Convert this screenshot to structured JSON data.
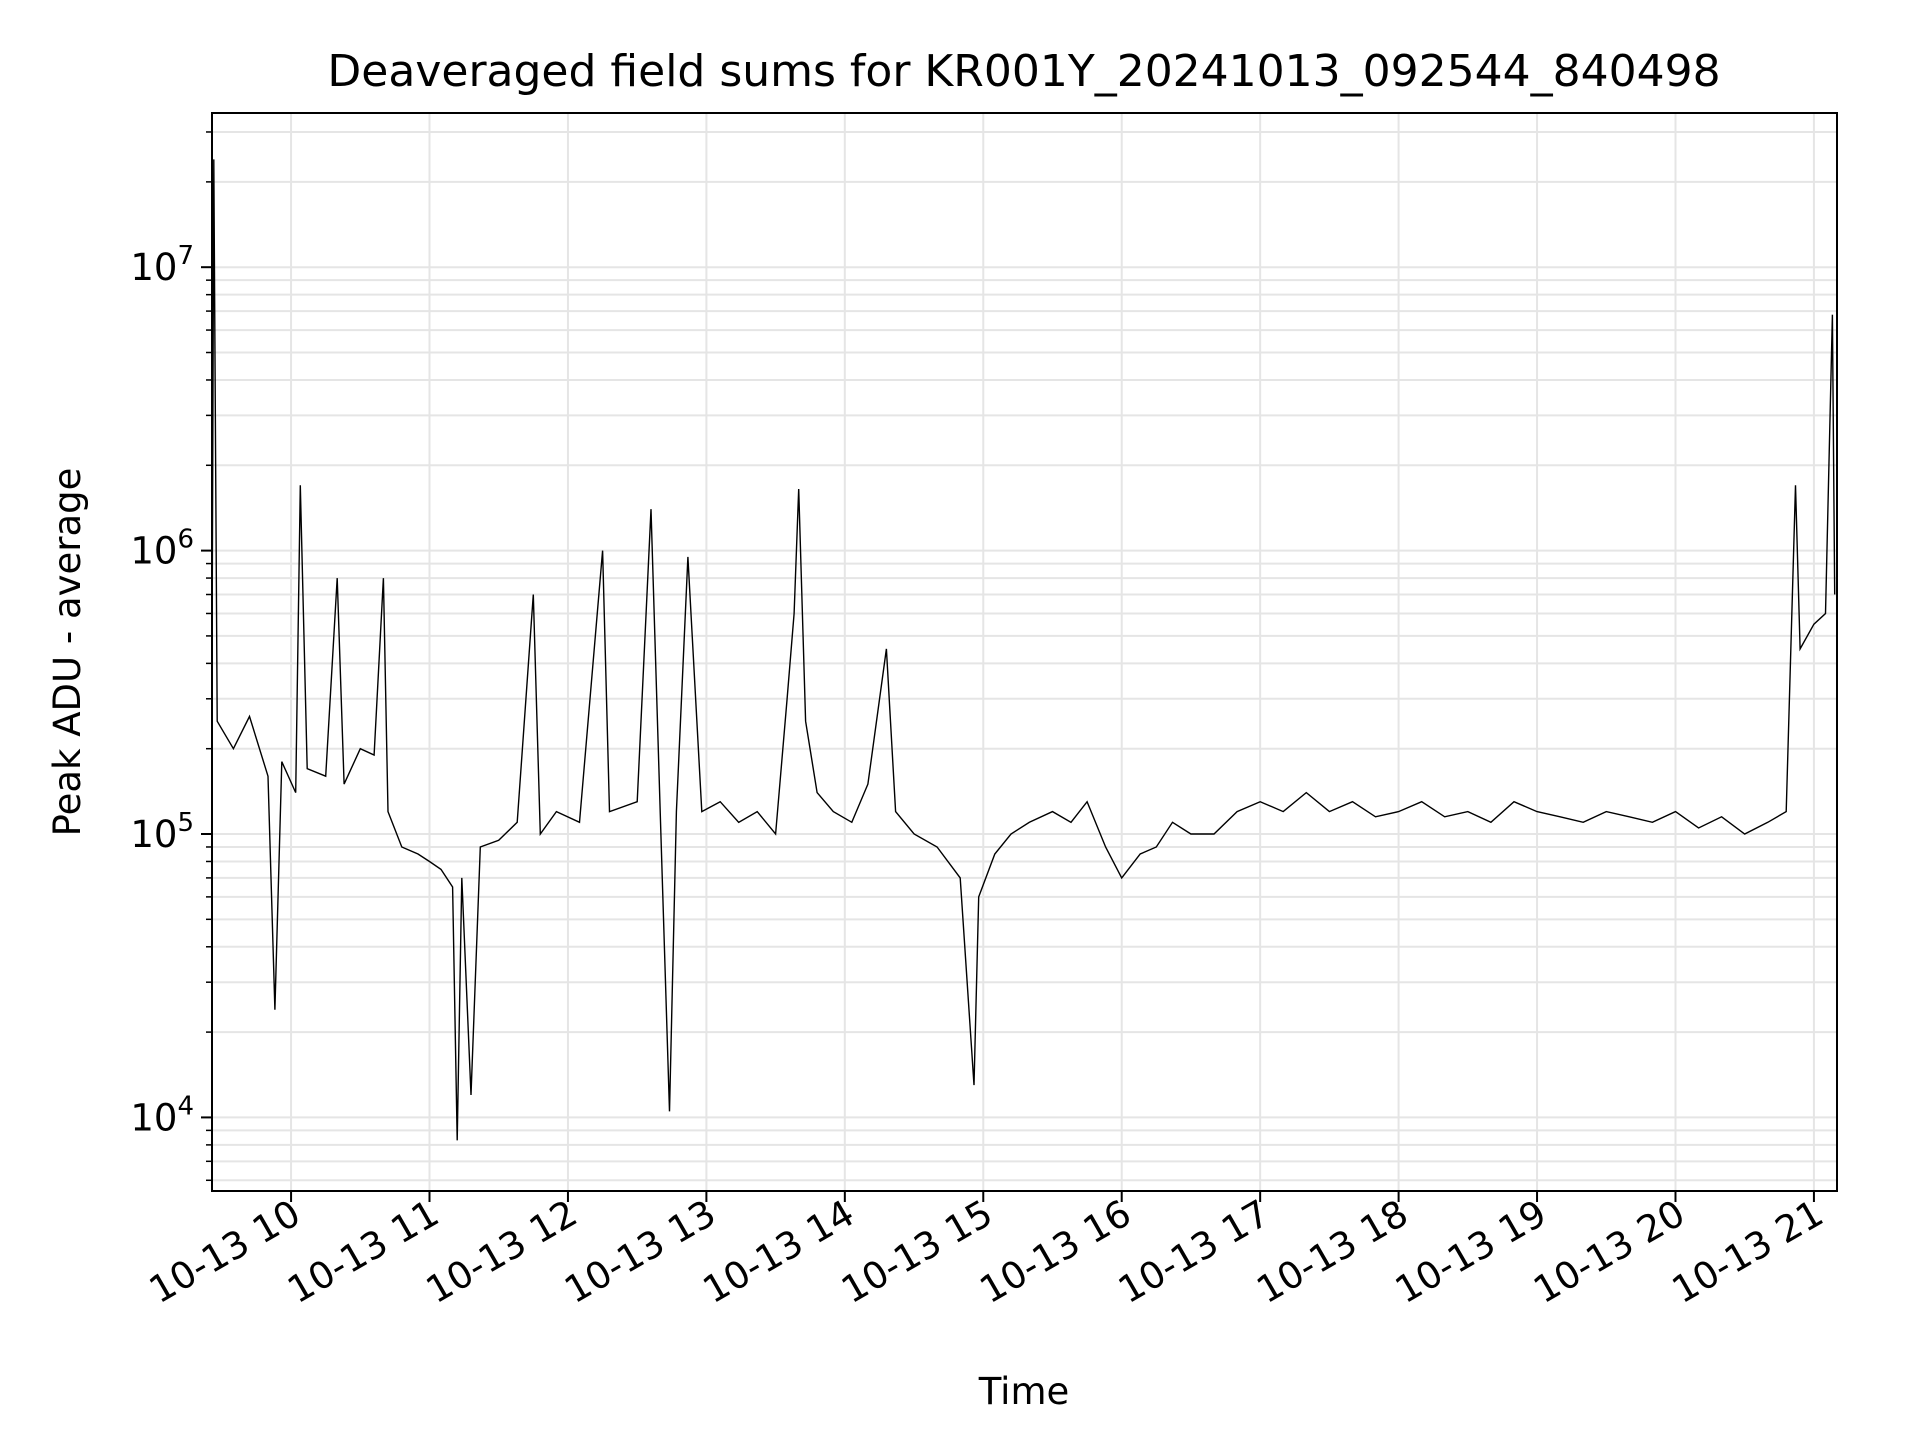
{
  "chart_data": {
    "type": "line",
    "title": "Deaveraged field sums for KR001Y_20241013_092544_840498",
    "xlabel": "Time",
    "ylabel": "Peak ADU - average",
    "yscale": "log",
    "ylim": [
      5500,
      35000000
    ],
    "xlim": [
      "2024-10-13T09:25:44",
      "2024-10-13T21:10:00"
    ],
    "x_ticks": [
      {
        "t": "2024-10-13T10:00",
        "label": "10-13 10"
      },
      {
        "t": "2024-10-13T11:00",
        "label": "10-13 11"
      },
      {
        "t": "2024-10-13T12:00",
        "label": "10-13 12"
      },
      {
        "t": "2024-10-13T13:00",
        "label": "10-13 13"
      },
      {
        "t": "2024-10-13T14:00",
        "label": "10-13 14"
      },
      {
        "t": "2024-10-13T15:00",
        "label": "10-13 15"
      },
      {
        "t": "2024-10-13T16:00",
        "label": "10-13 16"
      },
      {
        "t": "2024-10-13T17:00",
        "label": "10-13 17"
      },
      {
        "t": "2024-10-13T18:00",
        "label": "10-13 18"
      },
      {
        "t": "2024-10-13T19:00",
        "label": "10-13 19"
      },
      {
        "t": "2024-10-13T20:00",
        "label": "10-13 20"
      },
      {
        "t": "2024-10-13T21:00",
        "label": "10-13 21"
      }
    ],
    "y_ticks": [
      {
        "value": 10000,
        "base": "10",
        "exp": "4"
      },
      {
        "value": 100000,
        "base": "10",
        "exp": "5"
      },
      {
        "value": 1000000,
        "base": "10",
        "exp": "6"
      },
      {
        "value": 10000000,
        "base": "10",
        "exp": "7"
      }
    ],
    "grid": "on",
    "line_color": "#000000",
    "grid_color": "#e5e5e5",
    "series": [
      {
        "points": [
          [
            "2024-10-13T09:25:44",
            380000
          ],
          [
            "2024-10-13T09:26:30",
            24000000
          ],
          [
            "2024-10-13T09:28",
            250000
          ],
          [
            "2024-10-13T09:35",
            200000
          ],
          [
            "2024-10-13T09:42",
            260000
          ],
          [
            "2024-10-13T09:50",
            160000
          ],
          [
            "2024-10-13T09:53",
            24000
          ],
          [
            "2024-10-13T09:56",
            180000
          ],
          [
            "2024-10-13T10:02",
            140000
          ],
          [
            "2024-10-13T10:04",
            1700000
          ],
          [
            "2024-10-13T10:07",
            170000
          ],
          [
            "2024-10-13T10:15",
            160000
          ],
          [
            "2024-10-13T10:20",
            800000
          ],
          [
            "2024-10-13T10:23",
            150000
          ],
          [
            "2024-10-13T10:30",
            200000
          ],
          [
            "2024-10-13T10:36",
            190000
          ],
          [
            "2024-10-13T10:40",
            800000
          ],
          [
            "2024-10-13T10:42",
            120000
          ],
          [
            "2024-10-13T10:48",
            90000
          ],
          [
            "2024-10-13T10:55",
            85000
          ],
          [
            "2024-10-13T11:00",
            80000
          ],
          [
            "2024-10-13T11:05",
            75000
          ],
          [
            "2024-10-13T11:10",
            65000
          ],
          [
            "2024-10-13T11:12",
            8300
          ],
          [
            "2024-10-13T11:14",
            70000
          ],
          [
            "2024-10-13T11:18",
            12000
          ],
          [
            "2024-10-13T11:22",
            90000
          ],
          [
            "2024-10-13T11:30",
            95000
          ],
          [
            "2024-10-13T11:38",
            110000
          ],
          [
            "2024-10-13T11:45",
            700000
          ],
          [
            "2024-10-13T11:48",
            100000
          ],
          [
            "2024-10-13T11:55",
            120000
          ],
          [
            "2024-10-13T12:05",
            110000
          ],
          [
            "2024-10-13T12:15",
            1000000
          ],
          [
            "2024-10-13T12:18",
            120000
          ],
          [
            "2024-10-13T12:30",
            130000
          ],
          [
            "2024-10-13T12:36",
            1400000
          ],
          [
            "2024-10-13T12:40",
            120000
          ],
          [
            "2024-10-13T12:44",
            10500
          ],
          [
            "2024-10-13T12:47",
            120000
          ],
          [
            "2024-10-13T12:52",
            950000
          ],
          [
            "2024-10-13T12:58",
            120000
          ],
          [
            "2024-10-13T13:06",
            130000
          ],
          [
            "2024-10-13T13:14",
            110000
          ],
          [
            "2024-10-13T13:22",
            120000
          ],
          [
            "2024-10-13T13:30",
            100000
          ],
          [
            "2024-10-13T13:35",
            300000
          ],
          [
            "2024-10-13T13:38",
            600000
          ],
          [
            "2024-10-13T13:40",
            1650000
          ],
          [
            "2024-10-13T13:43",
            250000
          ],
          [
            "2024-10-13T13:48",
            140000
          ],
          [
            "2024-10-13T13:55",
            120000
          ],
          [
            "2024-10-13T14:03",
            110000
          ],
          [
            "2024-10-13T14:10",
            150000
          ],
          [
            "2024-10-13T14:18",
            450000
          ],
          [
            "2024-10-13T14:22",
            120000
          ],
          [
            "2024-10-13T14:30",
            100000
          ],
          [
            "2024-10-13T14:40",
            90000
          ],
          [
            "2024-10-13T14:50",
            70000
          ],
          [
            "2024-10-13T14:56",
            13000
          ],
          [
            "2024-10-13T14:58",
            60000
          ],
          [
            "2024-10-13T15:05",
            85000
          ],
          [
            "2024-10-13T15:12",
            100000
          ],
          [
            "2024-10-13T15:20",
            110000
          ],
          [
            "2024-10-13T15:30",
            120000
          ],
          [
            "2024-10-13T15:38",
            110000
          ],
          [
            "2024-10-13T15:45",
            130000
          ],
          [
            "2024-10-13T15:53",
            90000
          ],
          [
            "2024-10-13T16:00",
            70000
          ],
          [
            "2024-10-13T16:08",
            85000
          ],
          [
            "2024-10-13T16:15",
            90000
          ],
          [
            "2024-10-13T16:22",
            110000
          ],
          [
            "2024-10-13T16:30",
            100000
          ],
          [
            "2024-10-13T16:40",
            100000
          ],
          [
            "2024-10-13T16:50",
            120000
          ],
          [
            "2024-10-13T17:00",
            130000
          ],
          [
            "2024-10-13T17:10",
            120000
          ],
          [
            "2024-10-13T17:20",
            140000
          ],
          [
            "2024-10-13T17:30",
            120000
          ],
          [
            "2024-10-13T17:40",
            130000
          ],
          [
            "2024-10-13T17:50",
            115000
          ],
          [
            "2024-10-13T18:00",
            120000
          ],
          [
            "2024-10-13T18:10",
            130000
          ],
          [
            "2024-10-13T18:20",
            115000
          ],
          [
            "2024-10-13T18:30",
            120000
          ],
          [
            "2024-10-13T18:40",
            110000
          ],
          [
            "2024-10-13T18:50",
            130000
          ],
          [
            "2024-10-13T19:00",
            120000
          ],
          [
            "2024-10-13T19:10",
            115000
          ],
          [
            "2024-10-13T19:20",
            110000
          ],
          [
            "2024-10-13T19:30",
            120000
          ],
          [
            "2024-10-13T19:40",
            115000
          ],
          [
            "2024-10-13T19:50",
            110000
          ],
          [
            "2024-10-13T20:00",
            120000
          ],
          [
            "2024-10-13T20:10",
            105000
          ],
          [
            "2024-10-13T20:20",
            115000
          ],
          [
            "2024-10-13T20:30",
            100000
          ],
          [
            "2024-10-13T20:40",
            110000
          ],
          [
            "2024-10-13T20:48",
            120000
          ],
          [
            "2024-10-13T20:52",
            1700000
          ],
          [
            "2024-10-13T20:54",
            450000
          ],
          [
            "2024-10-13T21:00",
            550000
          ],
          [
            "2024-10-13T21:05",
            600000
          ],
          [
            "2024-10-13T21:08",
            6800000
          ],
          [
            "2024-10-13T21:09",
            700000
          ]
        ]
      }
    ]
  }
}
